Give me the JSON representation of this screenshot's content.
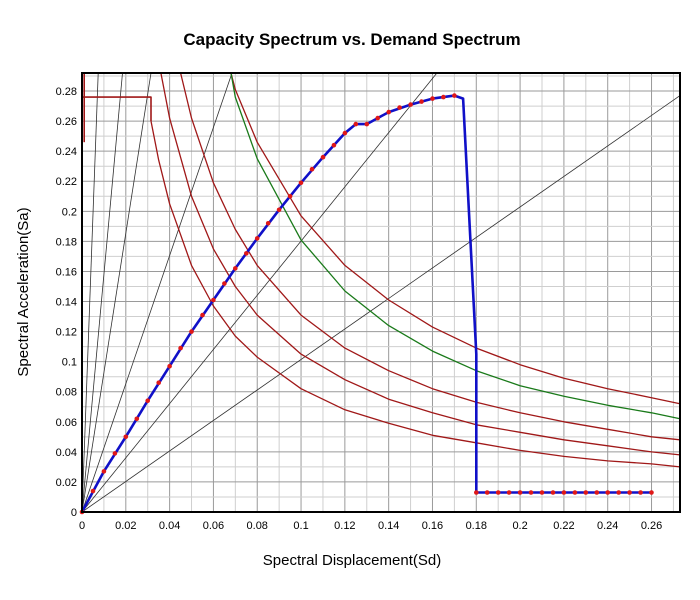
{
  "chart_data": {
    "type": "line",
    "title": "Capacity Spectrum vs. Demand Spectrum",
    "xlabel": "Spectral Displacement(Sd)",
    "ylabel": "Spectral Acceleration(Sa)",
    "xlim": [
      0,
      0.273
    ],
    "ylim": [
      0,
      0.292
    ],
    "xticks": [
      "0",
      "0.02",
      "0.04",
      "0.06",
      "0.08",
      "0.1",
      "0.12",
      "0.14",
      "0.16",
      "0.18",
      "0.2",
      "0.22",
      "0.24",
      "0.26"
    ],
    "yticks": [
      "0",
      "0.02",
      "0.04",
      "0.06",
      "0.08",
      "0.1",
      "0.12",
      "0.14",
      "0.16",
      "0.18",
      "0.2",
      "0.22",
      "0.24",
      "0.26",
      "0.28"
    ],
    "grid": true,
    "colors": {
      "capacity": "#1010c8",
      "capacity_marker": "#e01818",
      "demand": "#a01818",
      "demand_green": "#1a7a1a",
      "period_lines": "#303030"
    },
    "series": [
      {
        "kind": "capacity",
        "x": [
          0,
          0.01,
          0.02,
          0.03,
          0.04,
          0.05,
          0.06,
          0.07,
          0.08,
          0.09,
          0.1,
          0.11,
          0.12,
          0.125,
          0.13,
          0.135,
          0.14,
          0.15,
          0.16,
          0.165,
          0.17,
          0.172,
          0.174,
          0.18,
          0.18
        ],
        "y": [
          0,
          0.027,
          0.05,
          0.074,
          0.097,
          0.12,
          0.141,
          0.162,
          0.182,
          0.201,
          0.219,
          0.236,
          0.252,
          0.258,
          0.258,
          0.262,
          0.266,
          0.271,
          0.275,
          0.276,
          0.277,
          0.276,
          0.275,
          0.105,
          0.013
        ]
      },
      {
        "kind": "capacity",
        "x": [
          0.18,
          0.26
        ],
        "y": [
          0.013,
          0.013
        ]
      },
      {
        "kind": "capacity_markers",
        "x": [
          0,
          0.005,
          0.01,
          0.015,
          0.02,
          0.025,
          0.03,
          0.035,
          0.04,
          0.045,
          0.05,
          0.055,
          0.06,
          0.065,
          0.07,
          0.075,
          0.08,
          0.085,
          0.09,
          0.095,
          0.1,
          0.105,
          0.11,
          0.115,
          0.12,
          0.125,
          0.13,
          0.135,
          0.14,
          0.145,
          0.15,
          0.155,
          0.16,
          0.165,
          0.17,
          0.18,
          0.185,
          0.19,
          0.195,
          0.2,
          0.205,
          0.21,
          0.215,
          0.22,
          0.225,
          0.23,
          0.235,
          0.24,
          0.245,
          0.25,
          0.255,
          0.26
        ],
        "y": [
          0,
          0.014,
          0.027,
          0.039,
          0.05,
          0.062,
          0.074,
          0.086,
          0.097,
          0.109,
          0.12,
          0.131,
          0.141,
          0.152,
          0.162,
          0.172,
          0.182,
          0.192,
          0.201,
          0.21,
          0.219,
          0.228,
          0.236,
          0.244,
          0.252,
          0.258,
          0.258,
          0.262,
          0.266,
          0.269,
          0.271,
          0.273,
          0.275,
          0.276,
          0.277,
          0.013,
          0.013,
          0.013,
          0.013,
          0.013,
          0.013,
          0.013,
          0.013,
          0.013,
          0.013,
          0.013,
          0.013,
          0.013,
          0.013,
          0.013,
          0.013,
          0.013
        ]
      },
      {
        "kind": "demand_plateau",
        "x": [
          0,
          0.0315,
          0.0315
        ],
        "y": [
          0.276,
          0.276,
          0.26
        ]
      },
      {
        "kind": "demand_plateau",
        "x": [
          0.001,
          0.001
        ],
        "y": [
          0.246,
          0.292
        ]
      },
      {
        "kind": "demand",
        "x": [
          0.0315,
          0.035,
          0.04,
          0.05,
          0.06,
          0.07,
          0.08,
          0.1,
          0.12,
          0.14,
          0.16,
          0.18,
          0.2,
          0.22,
          0.24,
          0.26,
          0.273
        ],
        "y": [
          0.26,
          0.234,
          0.205,
          0.164,
          0.137,
          0.117,
          0.103,
          0.082,
          0.068,
          0.059,
          0.051,
          0.046,
          0.041,
          0.037,
          0.034,
          0.032,
          0.03
        ]
      },
      {
        "kind": "demand",
        "x": [
          0.045,
          0.05,
          0.06,
          0.07,
          0.08,
          0.1,
          0.12,
          0.14,
          0.16,
          0.18,
          0.2,
          0.22,
          0.24,
          0.26,
          0.273
        ],
        "y": [
          0.292,
          0.262,
          0.219,
          0.188,
          0.164,
          0.131,
          0.109,
          0.094,
          0.082,
          0.073,
          0.066,
          0.06,
          0.055,
          0.05,
          0.048
        ]
      },
      {
        "kind": "demand",
        "x": [
          0.036,
          0.04,
          0.05,
          0.06,
          0.07,
          0.08,
          0.1,
          0.12,
          0.14,
          0.16,
          0.18,
          0.2,
          0.22,
          0.24,
          0.26,
          0.273
        ],
        "y": [
          0.292,
          0.262,
          0.21,
          0.175,
          0.15,
          0.131,
          0.105,
          0.088,
          0.075,
          0.066,
          0.058,
          0.053,
          0.048,
          0.044,
          0.04,
          0.038
        ]
      },
      {
        "kind": "demand",
        "x": [
          0.068,
          0.07,
          0.08,
          0.1,
          0.12,
          0.14,
          0.16,
          0.18,
          0.2,
          0.22,
          0.24,
          0.26,
          0.273
        ],
        "y": [
          0.292,
          0.281,
          0.246,
          0.197,
          0.164,
          0.141,
          0.123,
          0.109,
          0.098,
          0.089,
          0.082,
          0.076,
          0.072
        ]
      },
      {
        "kind": "demand_green",
        "x": [
          0.068,
          0.07,
          0.08,
          0.1,
          0.12,
          0.14,
          0.16,
          0.18,
          0.2,
          0.22,
          0.24,
          0.26,
          0.273
        ],
        "y": [
          0.292,
          0.276,
          0.235,
          0.181,
          0.147,
          0.124,
          0.107,
          0.094,
          0.084,
          0.077,
          0.071,
          0.066,
          0.062
        ]
      },
      {
        "kind": "period_line",
        "x": [
          0,
          0.0074
        ],
        "y": [
          0,
          0.292
        ]
      },
      {
        "kind": "period_line",
        "x": [
          0,
          0.0185
        ],
        "y": [
          0,
          0.292
        ]
      },
      {
        "kind": "period_line",
        "x": [
          0,
          0.0315
        ],
        "y": [
          0,
          0.292
        ]
      },
      {
        "kind": "period_line",
        "x": [
          0,
          0.0685
        ],
        "y": [
          0,
          0.292
        ]
      },
      {
        "kind": "period_line",
        "x": [
          0,
          0.162
        ],
        "y": [
          0,
          0.292
        ]
      },
      {
        "kind": "period_line",
        "x": [
          0,
          0.273
        ],
        "y": [
          0,
          0.277
        ]
      }
    ]
  }
}
